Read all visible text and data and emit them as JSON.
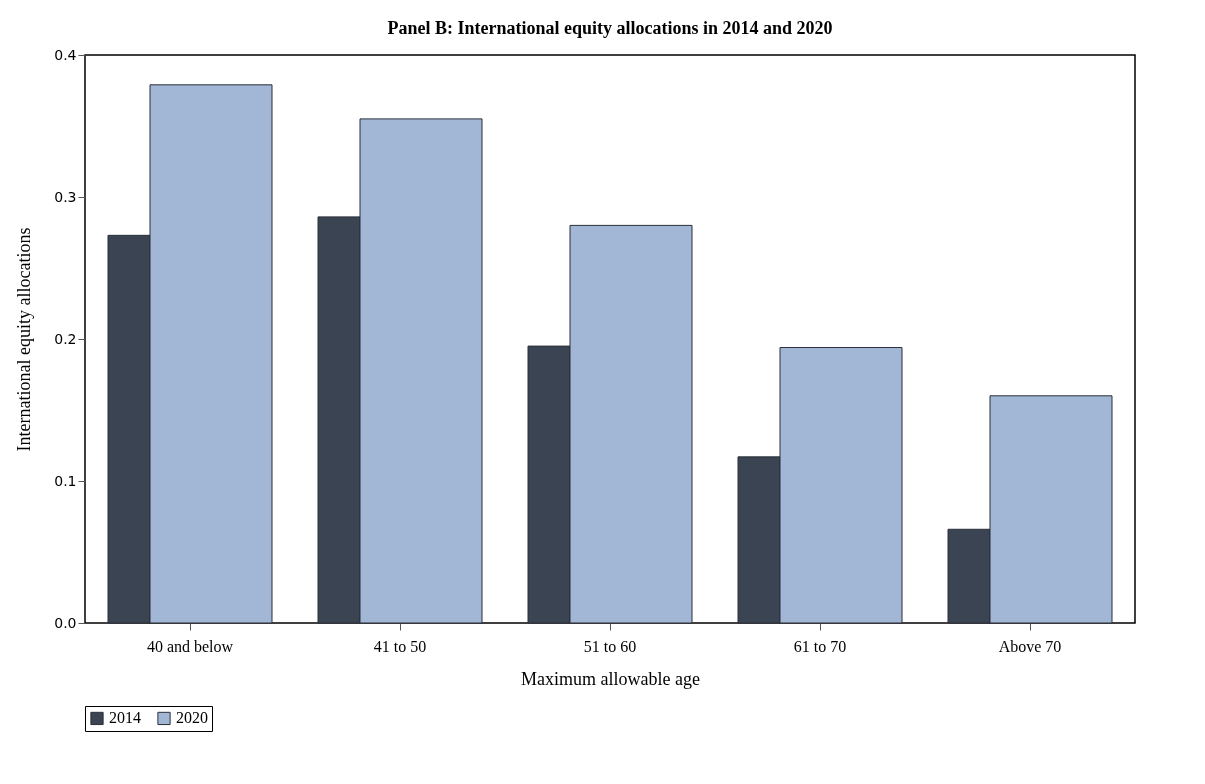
{
  "chart_data": {
    "type": "bar",
    "title": "Panel B: International equity allocations in 2014 and 2020",
    "xlabel": "Maximum allowable age",
    "ylabel": "International equity allocations",
    "categories": [
      "40 and below",
      "41 to 50",
      "51 to 60",
      "61 to 70",
      "Above 70"
    ],
    "series": [
      {
        "name": "2014",
        "color": "#3b4452",
        "values": [
          0.273,
          0.286,
          0.195,
          0.117,
          0.066
        ]
      },
      {
        "name": "2020",
        "color": "#a2b7d6",
        "values": [
          0.379,
          0.355,
          0.28,
          0.194,
          0.16
        ]
      }
    ],
    "ylim": [
      0,
      0.4
    ],
    "yticks": [
      {
        "value": 0,
        "label": "0.0"
      },
      0.1,
      0.2,
      0.3,
      0.4
    ],
    "legend": "bottom"
  }
}
